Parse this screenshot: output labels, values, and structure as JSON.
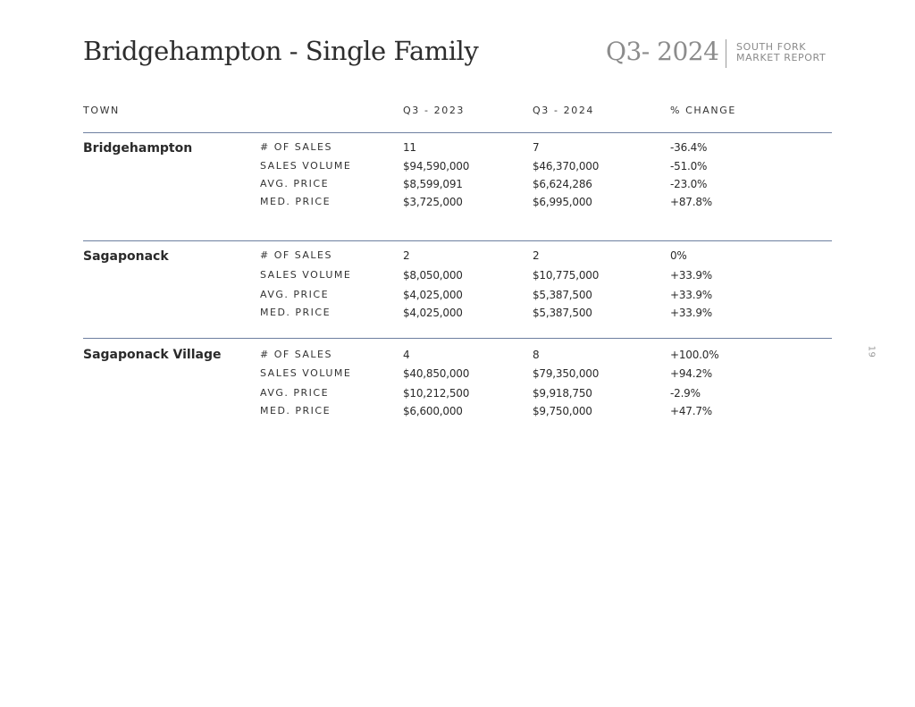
{
  "header": {
    "title": "Bridgehampton - Single Family",
    "quarter": "Q3- 2024",
    "report_line1": "SOUTH FORK",
    "report_line2": "MARKET REPORT"
  },
  "table": {
    "columns": [
      "TOWN",
      "Q3 - 2023",
      "Q3 - 2024",
      "% CHANGE"
    ],
    "groups": [
      {
        "town": "Bridgehampton",
        "rows": [
          {
            "metric": "# OF SALES",
            "q3_2023": "11",
            "q3_2024": "7",
            "change": "-36.4%"
          },
          {
            "metric": "SALES VOLUME",
            "q3_2023": "$94,590,000",
            "q3_2024": "$46,370,000",
            "change": "-51.0%"
          },
          {
            "metric": "AVG. PRICE",
            "q3_2023": "$8,599,091",
            "q3_2024": "$6,624,286",
            "change": "-23.0%"
          },
          {
            "metric": "MED. PRICE",
            "q3_2023": "$3,725,000",
            "q3_2024": "$6,995,000",
            "change": "+87.8%"
          }
        ]
      },
      {
        "town": "Sagaponack",
        "rows": [
          {
            "metric": "# OF SALES",
            "q3_2023": "2",
            "q3_2024": "2",
            "change": "0%"
          },
          {
            "metric": "SALES VOLUME",
            "q3_2023": "$8,050,000",
            "q3_2024": "$10,775,000",
            "change": "+33.9%"
          },
          {
            "metric": "AVG. PRICE",
            "q3_2023": "$4,025,000",
            "q3_2024": "$5,387,500",
            "change": "+33.9%"
          },
          {
            "metric": "MED. PRICE",
            "q3_2023": "$4,025,000",
            "q3_2024": "$5,387,500",
            "change": "+33.9%"
          }
        ]
      },
      {
        "town": "Sagaponack Village",
        "rows": [
          {
            "metric": "# OF SALES",
            "q3_2023": "4",
            "q3_2024": "8",
            "change": "+100.0%"
          },
          {
            "metric": "SALES VOLUME",
            "q3_2023": "$40,850,000",
            "q3_2024": "$79,350,000",
            "change": "+94.2%"
          },
          {
            "metric": "AVG. PRICE",
            "q3_2023": "$10,212,500",
            "q3_2024": "$9,918,750",
            "change": "-2.9%"
          },
          {
            "metric": "MED. PRICE",
            "q3_2023": "$6,600,000",
            "q3_2024": "$9,750,000",
            "change": "+47.7%"
          }
        ]
      }
    ]
  },
  "page_number": "19"
}
